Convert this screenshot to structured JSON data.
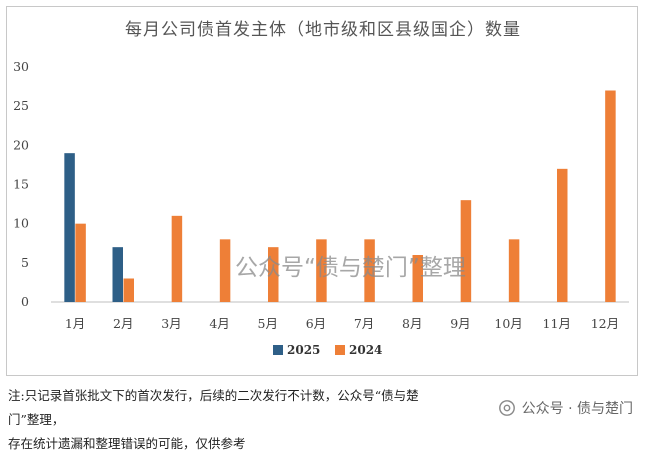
{
  "chart_data": {
    "type": "bar",
    "title": "每月公司债首发主体（地市级和区县级国企）数量",
    "categories": [
      "1月",
      "2月",
      "3月",
      "4月",
      "5月",
      "6月",
      "7月",
      "8月",
      "9月",
      "10月",
      "11月",
      "12月"
    ],
    "series": [
      {
        "name": "2025",
        "color": "#2e5f87",
        "values": [
          19,
          7,
          null,
          null,
          null,
          null,
          null,
          null,
          null,
          null,
          null,
          null
        ]
      },
      {
        "name": "2024",
        "color": "#ee7f37",
        "values": [
          10,
          3,
          11,
          8,
          7,
          8,
          8,
          6,
          13,
          8,
          17,
          27
        ]
      }
    ],
    "ylim": [
      0,
      30
    ],
    "yticks": [
      0,
      5,
      10,
      15,
      20,
      25,
      30
    ],
    "grid": false,
    "legend_position": "bottom"
  },
  "watermark_text": "公众号“债与楚门”整理",
  "footnote": {
    "line1": "注:只记录首张批文下的首次发行，后续的二次发行不计数，公众号“债与楚门”整理，",
    "line2": "存在统计遗漏和整理错误的可能，仅供参考"
  },
  "brand": {
    "text": "公众号 · 债与楚门",
    "icon": "wechat-icon"
  }
}
